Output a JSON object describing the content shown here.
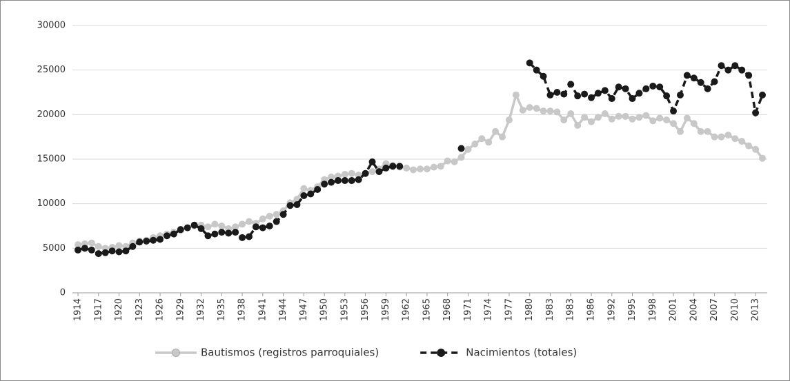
{
  "chart_data": {
    "type": "line",
    "categories": [
      "1914",
      null,
      null,
      "1917",
      null,
      null,
      "1920",
      null,
      null,
      "1923",
      null,
      null,
      "1926",
      null,
      null,
      "1929",
      null,
      null,
      "1932",
      null,
      null,
      "1935",
      null,
      null,
      "1938",
      null,
      null,
      "1941",
      null,
      null,
      "1944",
      null,
      null,
      "1947",
      null,
      null,
      "1950",
      null,
      null,
      "1953",
      null,
      null,
      "1956",
      null,
      null,
      "1959",
      null,
      null,
      "1962",
      null,
      null,
      "1965",
      null,
      null,
      "1968",
      null,
      null,
      "1971",
      null,
      null,
      "1974",
      null,
      null,
      "1977",
      null,
      null,
      "1980",
      null,
      null,
      "1983",
      null,
      null,
      "1983",
      null,
      null,
      "1986",
      null,
      null,
      "1992",
      null,
      null,
      "1995",
      null,
      null,
      "1998",
      null,
      null,
      "2001",
      null,
      null,
      "2004",
      null,
      null,
      "2007",
      null,
      null,
      "2010",
      null,
      null,
      "2013",
      null
    ],
    "series": [
      {
        "name": "Bautismos (registros parroquiales)",
        "color": "#c8c8c8",
        "dashed": false,
        "values": [
          5400,
          5500,
          5600,
          5200,
          5000,
          5100,
          5300,
          5200,
          5600,
          5800,
          5900,
          6200,
          6400,
          6600,
          6800,
          7000,
          7300,
          7500,
          7600,
          7400,
          7700,
          7500,
          7200,
          7400,
          7700,
          8000,
          7800,
          8300,
          8600,
          8800,
          9200,
          10100,
          10500,
          11700,
          11500,
          11900,
          12700,
          13000,
          13100,
          13300,
          13400,
          13200,
          13400,
          13600,
          13900,
          14500,
          14300,
          14100,
          14000,
          13800,
          13900,
          13900,
          14100,
          14200,
          14800,
          14700,
          15200,
          16100,
          16700,
          17300,
          16900,
          18100,
          17500,
          19400,
          22200,
          20500,
          20800,
          20700,
          20400,
          20400,
          20300,
          19400,
          20100,
          18800,
          19700,
          19200,
          19700,
          20100,
          19500,
          19800,
          19800,
          19500,
          19700,
          19900,
          19300,
          19600,
          19400,
          19000,
          18100,
          19600,
          19000,
          18100,
          18100,
          17500,
          17500,
          17700,
          17300,
          17000,
          16500,
          16100,
          15100
        ]
      },
      {
        "name": "Nacimientos (totales)",
        "color": "#1a1a1a",
        "dashed": true,
        "values": [
          4800,
          5000,
          4800,
          4400,
          4500,
          4700,
          4600,
          4700,
          5200,
          5700,
          5800,
          5900,
          6000,
          6400,
          6600,
          7100,
          7300,
          7600,
          7200,
          6400,
          6600,
          6800,
          6700,
          6800,
          6200,
          6300,
          7400,
          7300,
          7500,
          8000,
          8800,
          9800,
          9900,
          10900,
          11100,
          11600,
          12200,
          12400,
          12600,
          12600,
          12600,
          12700,
          13400,
          14700,
          13600,
          14000,
          14200,
          14200,
          null,
          null,
          null,
          null,
          null,
          null,
          null,
          null,
          16200,
          null,
          null,
          null,
          null,
          null,
          null,
          null,
          null,
          null,
          25800,
          25000,
          24300,
          22200,
          22500,
          22300,
          23400,
          22100,
          22300,
          21900,
          22400,
          22700,
          21800,
          23100,
          22900,
          21800,
          22400,
          22900,
          23200,
          23100,
          22100,
          20400,
          22200,
          24400,
          24100,
          23600,
          22900,
          23700,
          25500,
          25000,
          25500,
          25000,
          24400,
          20200,
          22200
        ]
      }
    ],
    "ylim": [
      0,
      30000
    ],
    "yticks": [
      0,
      5000,
      10000,
      15000,
      20000,
      25000,
      30000
    ],
    "grid": true,
    "legend": "bottom"
  }
}
